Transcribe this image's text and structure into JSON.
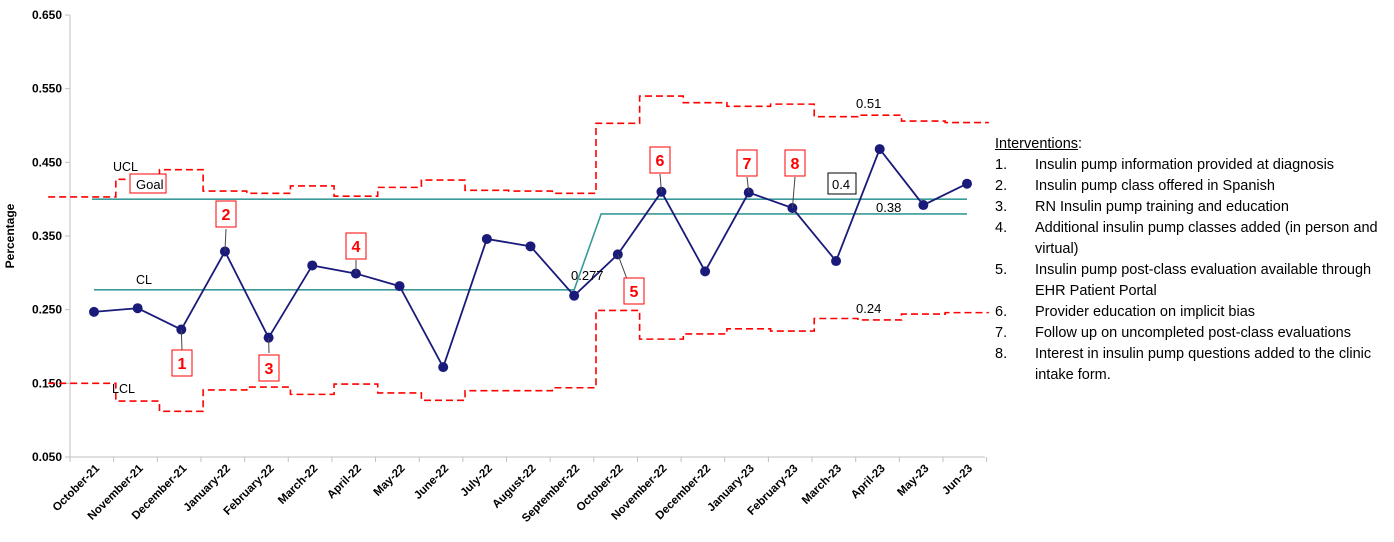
{
  "chart_data": {
    "type": "line",
    "title": "",
    "xlabel": "",
    "ylabel": "Percentage",
    "ylim": [
      0.05,
      0.65
    ],
    "yticks": [
      "0.050",
      "0.150",
      "0.250",
      "0.350",
      "0.450",
      "0.550",
      "0.650"
    ],
    "ytick_values": [
      0.05,
      0.15,
      0.25,
      0.35,
      0.45,
      0.55,
      0.65
    ],
    "categories": [
      "October-21",
      "November-21",
      "December-21",
      "January-22",
      "February-22",
      "March-22",
      "April-22",
      "May-22",
      "June-22",
      "July-22",
      "August-22",
      "September-22",
      "October-22",
      "November-22",
      "December-22",
      "January-23",
      "February-23",
      "March-23",
      "April-23",
      "May-23",
      "Jun-23"
    ],
    "series": [
      {
        "name": "",
        "values": [
          0.247,
          0.252,
          0.223,
          0.329,
          0.212,
          0.31,
          0.299,
          0.282,
          0.172,
          0.346,
          0.336,
          0.269,
          0.325,
          0.41,
          0.302,
          0.409,
          0.388,
          0.316,
          0.468,
          0.392,
          0.421
        ]
      }
    ],
    "ucl": [
      0.403,
      0.427,
      0.44,
      0.411,
      0.408,
      0.418,
      0.404,
      0.416,
      0.426,
      0.412,
      0.411,
      0.408,
      0.503,
      0.54,
      0.531,
      0.526,
      0.529,
      0.512,
      0.514,
      0.506,
      0.504
    ],
    "lcl": [
      0.15,
      0.126,
      0.112,
      0.141,
      0.145,
      0.135,
      0.149,
      0.137,
      0.127,
      0.14,
      0.14,
      0.144,
      0.249,
      0.21,
      0.217,
      0.224,
      0.221,
      0.238,
      0.236,
      0.244,
      0.246
    ],
    "goal": 0.4,
    "cl_before": 0.277,
    "cl_after": 0.38,
    "labels": {
      "ucl": "UCL",
      "lcl": "LCL",
      "cl": "CL",
      "goal": "Goal",
      "cl_before_value": "0.277",
      "goal_value": "0.4",
      "cl_after_value": "0.38",
      "ucl_value": "0.51",
      "lcl_value": "0.24"
    },
    "annotations": [
      {
        "text": "1",
        "index": 2
      },
      {
        "text": "2",
        "index": 3
      },
      {
        "text": "3",
        "index": 4
      },
      {
        "text": "4",
        "index": 6
      },
      {
        "text": "5",
        "index": 12
      },
      {
        "text": "6",
        "index": 13
      },
      {
        "text": "7",
        "index": 15
      },
      {
        "text": "8",
        "index": 16
      }
    ],
    "grid": false,
    "colors": {
      "series": "#1a1a7a",
      "limits": "#ff0000",
      "center": "#3a9a9a",
      "annotation": "#ff0000"
    }
  },
  "interventions": {
    "title": "Interventions",
    "title_suffix": ":",
    "items": [
      {
        "num": "1.",
        "text": "Insulin pump information provided at diagnosis"
      },
      {
        "num": "2.",
        "text": "Insulin pump class offered in Spanish"
      },
      {
        "num": "3.",
        "text": "RN Insulin pump training and education"
      },
      {
        "num": "4.",
        "text": "Additional insulin pump classes added (in person and virtual)"
      },
      {
        "num": "5.",
        "text": "Insulin pump post-class evaluation available through EHR Patient Portal"
      },
      {
        "num": "6.",
        "text": "Provider education on implicit bias"
      },
      {
        "num": "7.",
        "text": "Follow up on uncompleted post-class evaluations"
      },
      {
        "num": "8.",
        "text": "Interest in insulin pump questions added to the clinic intake form."
      }
    ]
  }
}
